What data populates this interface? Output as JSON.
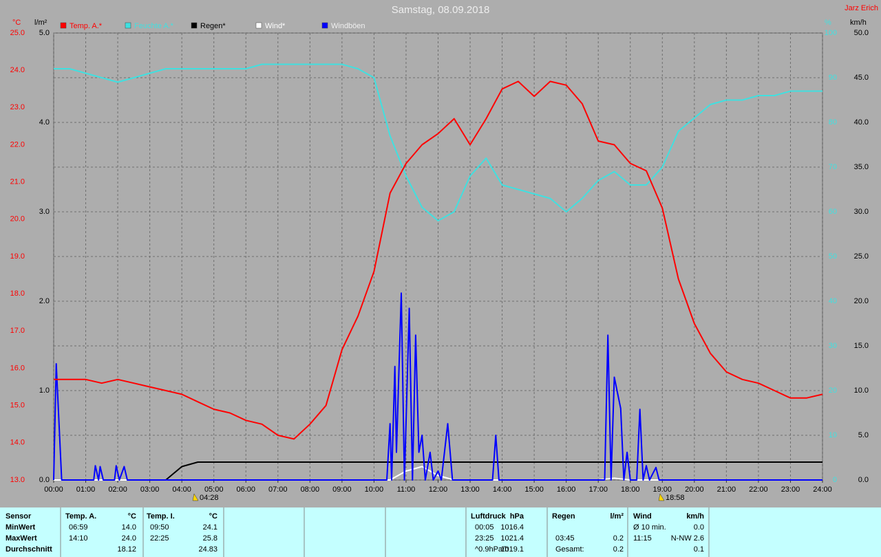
{
  "chart_data": {
    "type": "line",
    "title": "Samstag, 08.09.2018",
    "author": "Jarz Erich",
    "ylabel": "°C",
    "y2label": "%",
    "y3label": "l/m²",
    "y4label": "km/h",
    "xlim": [
      0,
      24
    ],
    "xticks": [
      {
        "value": 0,
        "label": "00:00"
      },
      {
        "value": 1,
        "label": "01:00"
      },
      {
        "value": 2,
        "label": "02:00"
      },
      {
        "value": 3,
        "label": "03:00"
      },
      {
        "value": 4,
        "label": "04:00"
      },
      {
        "value": 5,
        "label": "05:00"
      },
      {
        "value": 6,
        "label": "06:00"
      },
      {
        "value": 7,
        "label": "07:00"
      },
      {
        "value": 8,
        "label": "08:00"
      },
      {
        "value": 9,
        "label": "09:00"
      },
      {
        "value": 10,
        "label": "10:00"
      },
      {
        "value": 11,
        "label": "11:00"
      },
      {
        "value": 12,
        "label": "12:00"
      },
      {
        "value": 13,
        "label": "13:00"
      },
      {
        "value": 14,
        "label": "14:00"
      },
      {
        "value": 15,
        "label": "15:00"
      },
      {
        "value": 16,
        "label": "16:00"
      },
      {
        "value": 17,
        "label": "17:00"
      },
      {
        "value": 18,
        "label": "18:00"
      },
      {
        "value": 19,
        "label": "19:00"
      },
      {
        "value": 20,
        "label": "20:00"
      },
      {
        "value": 21,
        "label": "21:00"
      },
      {
        "value": 22,
        "label": "22:00"
      },
      {
        "value": 23,
        "label": "23:00"
      },
      {
        "value": 24,
        "label": "24:00"
      }
    ],
    "ylim": [
      13,
      25
    ],
    "yticks": [
      {
        "value": 13,
        "label": "13.0"
      },
      {
        "value": 14,
        "label": "14.0"
      },
      {
        "value": 15,
        "label": "15.0"
      },
      {
        "value": 16,
        "label": "16.0"
      },
      {
        "value": 17,
        "label": "17.0"
      },
      {
        "value": 18,
        "label": "18.0"
      },
      {
        "value": 19,
        "label": "19.0"
      },
      {
        "value": 20,
        "label": "20.0"
      },
      {
        "value": 21,
        "label": "21.0"
      },
      {
        "value": 22,
        "label": "22.0"
      },
      {
        "value": 23,
        "label": "23.0"
      },
      {
        "value": 24,
        "label": "24.0"
      },
      {
        "value": 25,
        "label": "25.0"
      }
    ],
    "y2lim": [
      0,
      100
    ],
    "y2ticks": [
      0,
      10,
      20,
      30,
      40,
      50,
      60,
      70,
      80,
      90,
      100
    ],
    "y3lim": [
      0,
      5
    ],
    "y3ticks": [
      {
        "value": 0,
        "label": "0.0"
      },
      {
        "value": 1,
        "label": "1.0"
      },
      {
        "value": 2,
        "label": "2.0"
      },
      {
        "value": 3,
        "label": "3.0"
      },
      {
        "value": 4,
        "label": "4.0"
      },
      {
        "value": 5,
        "label": "5.0"
      }
    ],
    "y4lim": [
      0,
      50
    ],
    "y4ticks": [
      {
        "value": 0,
        "label": "0.0"
      },
      {
        "value": 5,
        "label": "5.0"
      },
      {
        "value": 10,
        "label": "10.0"
      },
      {
        "value": 15,
        "label": "15.0"
      },
      {
        "value": 20,
        "label": "20.0"
      },
      {
        "value": 25,
        "label": "25.0"
      },
      {
        "value": 30,
        "label": "30.0"
      },
      {
        "value": 35,
        "label": "35.0"
      },
      {
        "value": 40,
        "label": "40.0"
      },
      {
        "value": 45,
        "label": "45.0"
      },
      {
        "value": 50,
        "label": "50.0"
      }
    ],
    "grid": true,
    "sunrise": "04:28",
    "sunset": "18:58",
    "x": [
      0,
      0.5,
      1,
      1.5,
      2,
      2.5,
      3,
      3.5,
      4,
      4.5,
      5,
      5.5,
      6,
      6.5,
      7,
      7.5,
      8,
      8.5,
      9,
      9.5,
      10,
      10.5,
      11,
      11.5,
      12,
      12.5,
      13,
      13.5,
      14,
      14.5,
      15,
      15.5,
      16,
      16.5,
      17,
      17.5,
      18,
      18.5,
      19,
      19.5,
      20,
      20.5,
      21,
      21.5,
      22,
      22.5,
      23,
      23.5,
      24
    ],
    "series": [
      {
        "name": "Temp. A.*",
        "color": "#ff0000",
        "axis": "y",
        "values": [
          15.7,
          15.7,
          15.7,
          15.6,
          15.7,
          15.6,
          15.5,
          15.4,
          15.3,
          15.1,
          14.9,
          14.8,
          14.6,
          14.5,
          14.2,
          14.1,
          14.5,
          15.0,
          16.5,
          17.4,
          18.6,
          20.7,
          21.5,
          22.0,
          22.3,
          22.7,
          22.0,
          22.7,
          23.5,
          23.7,
          23.3,
          23.7,
          23.6,
          23.1,
          22.1,
          22.0,
          21.5,
          21.3,
          20.3,
          18.4,
          17.2,
          16.4,
          15.9,
          15.7,
          15.6,
          15.4,
          15.2,
          15.2,
          15.3
        ]
      },
      {
        "name": "Feuchte A.*",
        "color": "#40e0e0",
        "axis": "y2",
        "values": [
          92,
          92,
          91,
          90,
          89,
          90,
          91,
          92,
          92,
          92,
          92,
          92,
          92,
          93,
          93,
          93,
          93,
          93,
          93,
          92,
          90,
          77,
          68,
          61,
          58,
          60,
          68,
          72,
          66,
          65,
          64,
          63,
          60,
          63,
          67,
          69,
          66,
          66,
          70,
          78,
          81,
          84,
          85,
          85,
          86,
          86,
          87,
          87,
          87
        ]
      },
      {
        "name": "Regen*",
        "color": "#000000",
        "axis": "y3",
        "values": [
          0,
          0,
          0,
          0,
          0,
          0,
          0,
          0,
          0.15,
          0.2,
          0.2,
          0.2,
          0.2,
          0.2,
          0.2,
          0.2,
          0.2,
          0.2,
          0.2,
          0.2,
          0.2,
          0.2,
          0.2,
          0.2,
          0.2,
          0.2,
          0.2,
          0.2,
          0.2,
          0.2,
          0.2,
          0.2,
          0.2,
          0.2,
          0.2,
          0.2,
          0.2,
          0.2,
          0.2,
          0.2,
          0.2,
          0.2,
          0.2,
          0.2,
          0.2,
          0.2,
          0.2,
          0.2,
          0.2
        ]
      },
      {
        "name": "Wind*",
        "color": "#ffffff",
        "axis": "y4",
        "values": [
          0,
          0,
          0,
          0,
          0,
          0,
          0,
          0,
          0,
          0,
          0,
          0,
          0,
          0,
          0,
          0,
          0,
          0,
          0,
          0,
          0,
          0,
          1.0,
          1.5,
          0.5,
          0,
          0,
          0,
          0,
          0,
          0,
          0,
          0,
          0,
          0,
          0.2,
          0,
          0,
          0,
          0,
          0,
          0,
          0,
          0,
          0,
          0,
          0,
          0,
          0
        ]
      },
      {
        "name": "Windböen",
        "color": "#0000ff",
        "axis": "y4",
        "x": [
          0,
          0.08,
          0.25,
          1.25,
          1.3,
          1.4,
          1.45,
          1.55,
          1.9,
          1.95,
          2.05,
          2.2,
          2.3,
          10.4,
          10.5,
          10.55,
          10.65,
          10.7,
          10.85,
          10.95,
          11.1,
          11.2,
          11.3,
          11.4,
          11.5,
          11.6,
          11.75,
          11.85,
          12.0,
          12.1,
          12.3,
          12.45,
          13.7,
          13.8,
          13.9,
          17.2,
          17.3,
          17.4,
          17.5,
          17.7,
          17.8,
          17.9,
          18.0,
          18.2,
          18.3,
          18.4,
          18.5,
          18.6,
          18.8,
          18.9,
          24
        ],
        "values": [
          0,
          13,
          0,
          0,
          1.6,
          0,
          1.5,
          0,
          0,
          1.6,
          0,
          1.5,
          0,
          0,
          6.3,
          0,
          12.7,
          3.1,
          20.9,
          0,
          19.2,
          0,
          16.2,
          3.1,
          5.0,
          0,
          3.1,
          0,
          1,
          0,
          6.3,
          0,
          0,
          5.0,
          0,
          0,
          16.2,
          0,
          11.5,
          8.0,
          0,
          3.1,
          0,
          0,
          7.9,
          0,
          1.6,
          0,
          1.4,
          0,
          0
        ]
      }
    ]
  },
  "table": {
    "row_labels": [
      "Sensor",
      "MinWert",
      "MaxWert",
      "Durchschnitt"
    ],
    "groups": [
      {
        "name": "Temp. A.",
        "unit": "°C",
        "rows": [
          [
            "06:59",
            "14.0"
          ],
          [
            "14:10",
            "24.0"
          ],
          [
            null,
            "18.12"
          ]
        ]
      },
      {
        "name": "Temp. I.",
        "unit": "°C",
        "rows": [
          [
            "09:50",
            "24.1"
          ],
          [
            "22:25",
            "25.8"
          ],
          [
            null,
            "24.83"
          ]
        ]
      },
      {
        "name": "Luftdruck",
        "unit": "hPa",
        "rows": [
          [
            "00:05",
            "1016.4"
          ],
          [
            "23:25",
            "1021.4"
          ],
          [
            "^0.9hPa/h",
            "1019.1"
          ]
        ]
      },
      {
        "name": "Regen",
        "unit": "l/m²",
        "rows": [
          [
            null,
            null
          ],
          [
            "03:45",
            "0.2"
          ],
          [
            "Gesamt:",
            "0.2"
          ]
        ]
      },
      {
        "name": "Wind",
        "unit": "km/h",
        "rows": [
          [
            "Ø 10 min.",
            "0.0"
          ],
          [
            "11:15",
            "N-NW 2.6"
          ],
          [
            null,
            "0.1"
          ]
        ]
      }
    ]
  }
}
